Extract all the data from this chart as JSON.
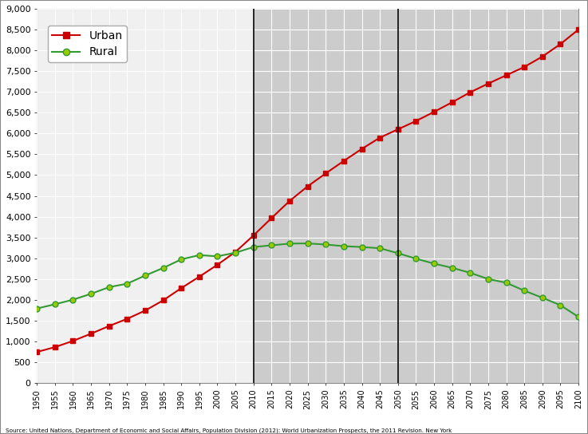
{
  "years": [
    1950,
    1955,
    1960,
    1965,
    1970,
    1975,
    1980,
    1985,
    1990,
    1995,
    2000,
    2005,
    2010,
    2015,
    2020,
    2025,
    2030,
    2035,
    2040,
    2045,
    2050,
    2055,
    2060,
    2065,
    2070,
    2075,
    2080,
    2085,
    2090,
    2095,
    2100
  ],
  "urban": [
    746,
    862,
    1012,
    1186,
    1370,
    1543,
    1742,
    1988,
    2282,
    2557,
    2843,
    3153,
    3548,
    3967,
    4378,
    4730,
    5040,
    5340,
    5630,
    5900,
    6100,
    6300,
    6520,
    6750,
    6990,
    7200,
    7400,
    7600,
    7850,
    8150,
    8500
  ],
  "rural": [
    1791,
    1893,
    2003,
    2145,
    2305,
    2388,
    2584,
    2767,
    2973,
    3075,
    3046,
    3133,
    3269,
    3311,
    3352,
    3357,
    3330,
    3290,
    3270,
    3240,
    3121,
    2990,
    2870,
    2770,
    2650,
    2500,
    2410,
    2220,
    2050,
    1870,
    1590
  ],
  "urban_color": "#CC0000",
  "rural_color": "#339933",
  "rural_marker_color": "#99CC00",
  "marker_urban": "s",
  "marker_rural": "o",
  "shaded_region_start": 2010,
  "shaded_region_end": 2100,
  "shaded_color_dark": "#CCCCCC",
  "vline1": 2010,
  "vline2": 2050,
  "ylim": [
    0,
    9000
  ],
  "yticks": [
    0,
    500,
    1000,
    1500,
    2000,
    2500,
    3000,
    3500,
    4000,
    4500,
    5000,
    5500,
    6000,
    6500,
    7000,
    7500,
    8000,
    8500,
    9000
  ],
  "ytick_labels": [
    "0",
    "500",
    "1,000",
    "1,500",
    "2,000",
    "2,500",
    "3,000",
    "3,500",
    "4,000",
    "4,500",
    "5,000",
    "5,500",
    "6,000",
    "6,500",
    "7,000",
    "7,500",
    "8,000",
    "8,500",
    "9,000"
  ],
  "xlim_start": 1950,
  "xlim_end": 2100,
  "background_color": "#FFFFFF",
  "plot_bg_left_color": "#F0F0F0",
  "plot_bg_right_color": "#DCDCDC",
  "grid_color": "#FFFFFF",
  "source_text": "Source: United Nations, Department of Economic and Social Affairs, Population Division (2012): World Urbanization Prospects, the 2011 Revision. New York",
  "legend_urban": "Urban",
  "legend_rural": "Rural",
  "border_color": "#000000",
  "fig_border_color": "#888888"
}
